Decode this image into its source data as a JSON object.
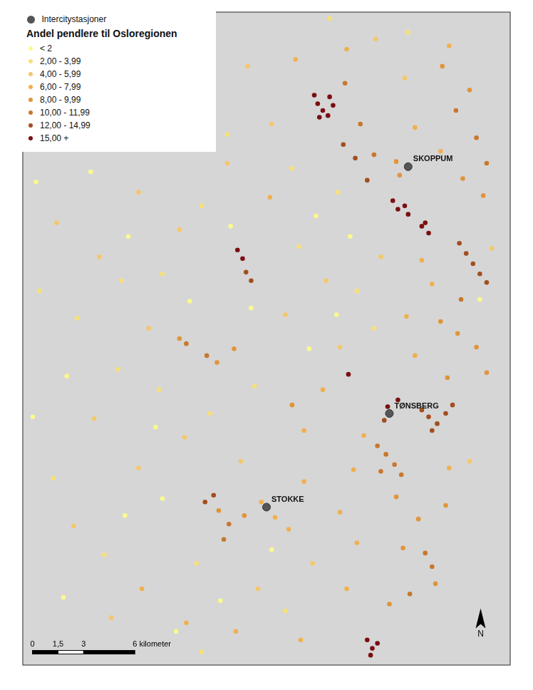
{
  "chart_data": {
    "type": "scatter",
    "title": "Andel pendlere til Osloregionen",
    "xlim": [
      0,
      28.6
    ],
    "ylim": [
      0,
      38.4
    ],
    "tick_labels": false,
    "grid": false,
    "legend": "top-left",
    "series": [
      {
        "name": "< 2",
        "color": "#fafa8c",
        "marker": "circle",
        "points": [
          [
            0.8,
            28.4
          ],
          [
            2.6,
            17.0
          ],
          [
            4.0,
            29.0
          ],
          [
            6.2,
            25.2
          ],
          [
            7.8,
            14.0
          ],
          [
            9.8,
            21.4
          ],
          [
            12.2,
            25.8
          ],
          [
            13.4,
            21.0
          ],
          [
            16.8,
            18.6
          ],
          [
            17.2,
            26.4
          ],
          [
            19.2,
            25.2
          ],
          [
            18.4,
            20.6
          ],
          [
            6.0,
            8.8
          ],
          [
            2.4,
            4.0
          ],
          [
            11.6,
            3.8
          ],
          [
            14.6,
            6.8
          ],
          [
            0.6,
            14.6
          ],
          [
            9.0,
            2.0
          ],
          [
            8.2,
            9.8
          ],
          [
            26.8,
            21.5
          ]
        ]
      },
      {
        "name": "2,00 - 3,99",
        "color": "#f7e07a",
        "marker": "circle",
        "points": [
          [
            1.0,
            22.0
          ],
          [
            3.2,
            20.4
          ],
          [
            5.8,
            22.6
          ],
          [
            8.2,
            23.0
          ],
          [
            10.5,
            27.0
          ],
          [
            12.0,
            31.2
          ],
          [
            15.8,
            29.2
          ],
          [
            18.5,
            27.8
          ],
          [
            16.2,
            24.6
          ],
          [
            19.6,
            22.0
          ],
          [
            13.6,
            16.4
          ],
          [
            11.0,
            14.8
          ],
          [
            8.0,
            16.2
          ],
          [
            5.6,
            17.4
          ],
          [
            1.8,
            11.0
          ],
          [
            4.8,
            6.5
          ],
          [
            10.2,
            6.0
          ],
          [
            15.4,
            3.2
          ],
          [
            10.5,
            0.8
          ],
          [
            20.6,
            19.8
          ],
          [
            22.6,
            37.2
          ],
          [
            18.0,
            38.0
          ]
        ]
      },
      {
        "name": "4,00 - 5,99",
        "color": "#f5c76b",
        "marker": "circle",
        "points": [
          [
            2.0,
            26.0
          ],
          [
            4.5,
            24.0
          ],
          [
            6.8,
            27.8
          ],
          [
            9.2,
            25.6
          ],
          [
            12.0,
            29.5
          ],
          [
            14.6,
            31.8
          ],
          [
            13.2,
            35.2
          ],
          [
            20.7,
            36.8
          ],
          [
            22.4,
            34.5
          ],
          [
            21.0,
            24.0
          ],
          [
            17.8,
            22.6
          ],
          [
            15.4,
            20.6
          ],
          [
            18.6,
            18.7
          ],
          [
            7.4,
            19.8
          ],
          [
            4.2,
            14.5
          ],
          [
            6.8,
            11.6
          ],
          [
            9.5,
            13.4
          ],
          [
            12.8,
            12.0
          ],
          [
            3.0,
            8.2
          ],
          [
            5.2,
            2.8
          ],
          [
            13.8,
            4.5
          ],
          [
            17.0,
            6.0
          ],
          [
            26.2,
            12.0
          ],
          [
            27.5,
            24.5
          ]
        ]
      },
      {
        "name": "6,00 - 7,99",
        "color": "#f0b050",
        "marker": "circle",
        "points": [
          [
            20.0,
            13.5
          ],
          [
            19.4,
            11.5
          ],
          [
            18.6,
            9.0
          ],
          [
            19.6,
            7.2
          ],
          [
            14.0,
            9.6
          ],
          [
            14.8,
            8.7
          ],
          [
            15.6,
            8.0
          ],
          [
            16.5,
            10.8
          ],
          [
            23.0,
            18.2
          ],
          [
            22.5,
            20.5
          ],
          [
            24.0,
            22.4
          ],
          [
            23.4,
            23.8
          ],
          [
            23.0,
            31.6
          ],
          [
            24.5,
            30.2
          ],
          [
            25.0,
            36.4
          ],
          [
            16.0,
            35.6
          ],
          [
            19.0,
            36.2
          ],
          [
            14.5,
            27.5
          ],
          [
            7.0,
            4.5
          ],
          [
            9.6,
            2.5
          ],
          [
            12.5,
            2.0
          ],
          [
            16.3,
            1.5
          ],
          [
            16.5,
            13.8
          ],
          [
            17.6,
            16.2
          ],
          [
            19.0,
            4.5
          ],
          [
            25.0,
            11.6
          ]
        ]
      },
      {
        "name": "8,00 - 9,99",
        "color": "#e0953a",
        "marker": "circle",
        "points": [
          [
            24.5,
            20.2
          ],
          [
            25.5,
            19.5
          ],
          [
            26.6,
            18.7
          ],
          [
            27.2,
            17.2
          ],
          [
            24.9,
            16.9
          ],
          [
            21.9,
            9.9
          ],
          [
            23.2,
            8.6
          ],
          [
            24.8,
            9.4
          ],
          [
            22.3,
            6.9
          ],
          [
            24.2,
            4.8
          ],
          [
            21.5,
            3.6
          ],
          [
            24.6,
            35.2
          ],
          [
            26.2,
            33.8
          ],
          [
            25.8,
            28.6
          ],
          [
            27.0,
            27.6
          ],
          [
            22.1,
            28.8
          ],
          [
            21.9,
            29.6
          ],
          [
            9.2,
            19.2
          ],
          [
            11.4,
            17.8
          ],
          [
            12.4,
            18.6
          ],
          [
            15.8,
            15.3
          ],
          [
            11.5,
            9.1
          ],
          [
            13.0,
            8.8
          ]
        ]
      },
      {
        "name": "10,00 - 11,99",
        "color": "#c8782d",
        "marker": "circle",
        "points": [
          [
            20.8,
            12.9
          ],
          [
            21.3,
            12.4
          ],
          [
            21.8,
            11.8
          ],
          [
            22.2,
            11.2
          ],
          [
            21.0,
            11.4
          ],
          [
            25.4,
            32.6
          ],
          [
            26.6,
            31.0
          ],
          [
            27.2,
            29.5
          ],
          [
            25.7,
            21.5
          ],
          [
            18.9,
            34.2
          ],
          [
            19.8,
            31.8
          ],
          [
            20.6,
            30.0
          ],
          [
            9.6,
            18.9
          ],
          [
            10.8,
            18.2
          ],
          [
            23.6,
            6.6
          ],
          [
            24.0,
            5.8
          ],
          [
            22.7,
            4.2
          ],
          [
            12.1,
            8.3
          ],
          [
            11.8,
            7.4
          ]
        ]
      },
      {
        "name": "12,00 - 14,99",
        "color": "#a34e1f",
        "marker": "circle",
        "points": [
          [
            25.6,
            24.8
          ],
          [
            26.0,
            24.2
          ],
          [
            26.4,
            23.6
          ],
          [
            26.8,
            23.0
          ],
          [
            27.2,
            22.5
          ],
          [
            23.4,
            15.0
          ],
          [
            23.8,
            14.6
          ],
          [
            24.3,
            14.2
          ],
          [
            24.8,
            14.8
          ],
          [
            25.2,
            15.3
          ],
          [
            24.0,
            13.8
          ],
          [
            18.8,
            30.6
          ],
          [
            19.5,
            29.8
          ],
          [
            20.2,
            28.5
          ],
          [
            13.1,
            23.1
          ],
          [
            13.4,
            22.6
          ],
          [
            10.7,
            9.6
          ],
          [
            11.2,
            10.0
          ],
          [
            21.2,
            14.4
          ]
        ]
      },
      {
        "name": "15,00 +",
        "color": "#7a0f12",
        "marker": "circle",
        "points": [
          [
            17.1,
            33.5
          ],
          [
            17.3,
            33.0
          ],
          [
            17.6,
            32.6
          ],
          [
            17.9,
            32.3
          ],
          [
            18.2,
            32.9
          ],
          [
            17.4,
            32.2
          ],
          [
            18.0,
            33.4
          ],
          [
            21.7,
            27.3
          ],
          [
            22.0,
            26.8
          ],
          [
            22.4,
            27.0
          ],
          [
            22.6,
            26.5
          ],
          [
            23.4,
            25.8
          ],
          [
            23.8,
            25.4
          ],
          [
            23.6,
            26.0
          ],
          [
            12.6,
            24.4
          ],
          [
            12.9,
            23.9
          ],
          [
            22.0,
            15.6
          ],
          [
            21.4,
            15.2
          ],
          [
            20.2,
            1.5
          ],
          [
            20.5,
            1.0
          ],
          [
            20.8,
            1.3
          ],
          [
            20.4,
            0.6
          ],
          [
            19.1,
            17.1
          ]
        ]
      }
    ],
    "stations": {
      "name": "Intercitystasjoner",
      "color": "#555555",
      "marker": "circle",
      "points": [
        {
          "label": "SKOPPUM",
          "x": 22.6,
          "y": 29.3
        },
        {
          "label": "TØNSBERG",
          "x": 21.5,
          "y": 14.8
        },
        {
          "label": "STOKKE",
          "x": 14.3,
          "y": 9.3
        }
      ]
    },
    "scale_bar": {
      "ticks": [
        {
          "value": 0,
          "label": "0"
        },
        {
          "value": 1.5,
          "label": "1,5"
        },
        {
          "value": 3,
          "label": "3"
        },
        {
          "value": 6,
          "label": "6 kilometer"
        }
      ]
    },
    "north_arrow": "N"
  }
}
